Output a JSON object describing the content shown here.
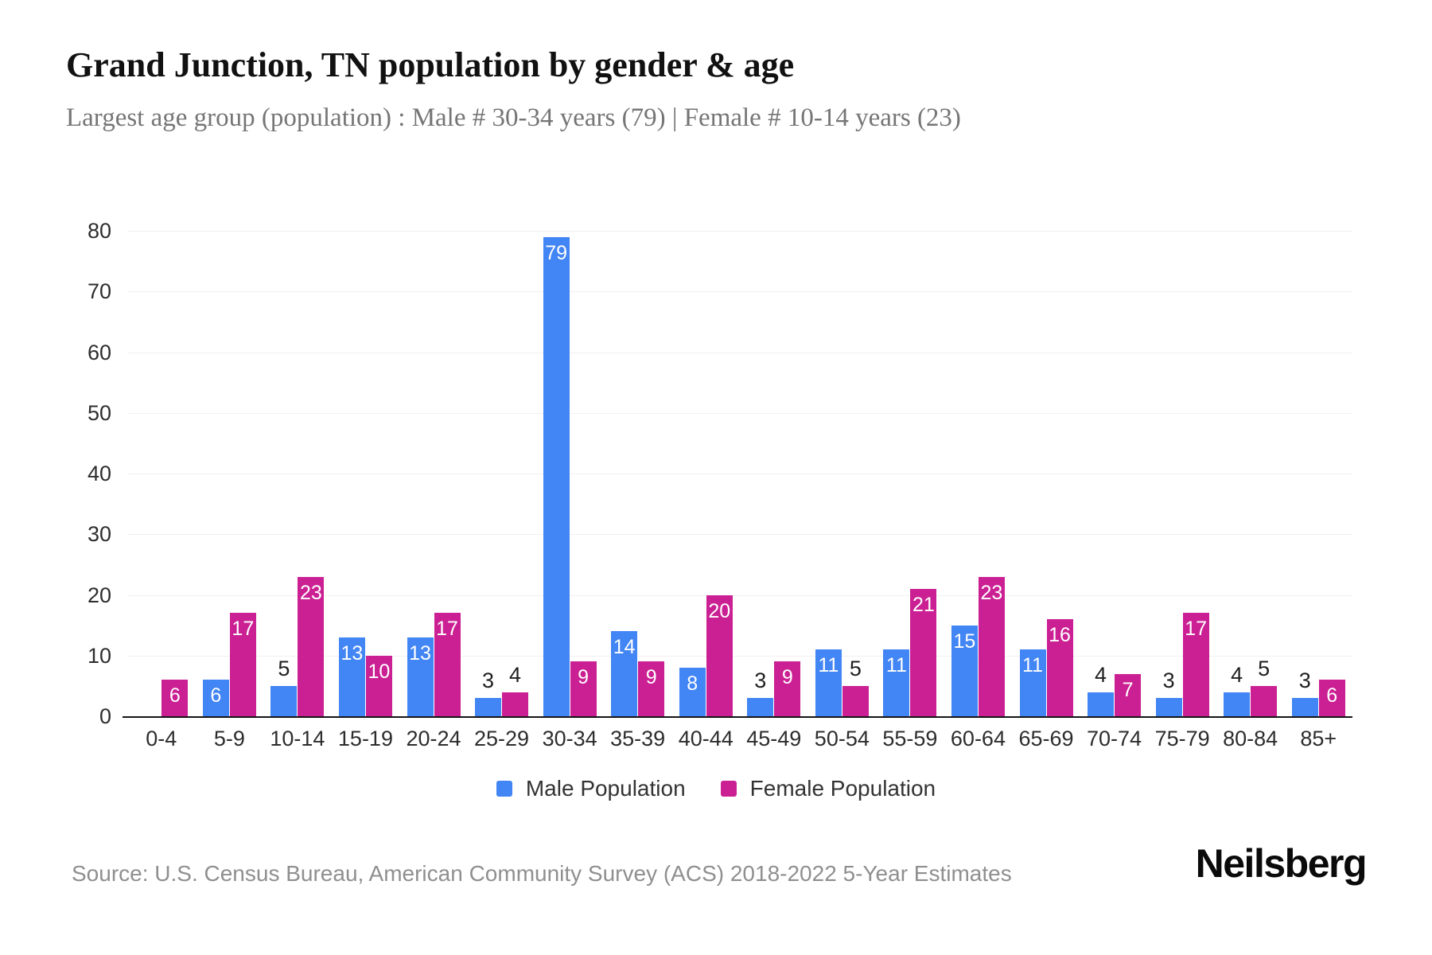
{
  "header": {
    "title": "Grand Junction, TN population by gender & age",
    "subtitle": "Largest age group (population) : Male # 30-34 years (79) | Female # 10-14 years (23)"
  },
  "chart_data": {
    "type": "bar",
    "title": "Grand Junction, TN population by gender & age",
    "xlabel": "",
    "ylabel": "",
    "categories": [
      "0-4",
      "5-9",
      "10-14",
      "15-19",
      "20-24",
      "25-29",
      "30-34",
      "35-39",
      "40-44",
      "45-49",
      "50-54",
      "55-59",
      "60-64",
      "65-69",
      "70-74",
      "75-79",
      "80-84",
      "85+"
    ],
    "series": [
      {
        "name": "Male Population",
        "color": "#4285f4",
        "values": [
          0,
          6,
          5,
          13,
          13,
          3,
          79,
          14,
          8,
          3,
          11,
          11,
          15,
          11,
          4,
          3,
          4,
          3
        ]
      },
      {
        "name": "Female Population",
        "color": "#cb2093",
        "values": [
          6,
          17,
          23,
          10,
          17,
          4,
          9,
          9,
          20,
          9,
          5,
          21,
          23,
          16,
          7,
          17,
          5,
          6
        ]
      }
    ],
    "ylim": [
      0,
      80
    ],
    "yticks": [
      0,
      10,
      20,
      30,
      40,
      50,
      60,
      70,
      80
    ],
    "grid": true,
    "legend_position": "bottom",
    "label_rule": "values of 6 or more shown in white inside bar top; values of 5 or less shown in dark text above bar; zero values have no bar and no label"
  },
  "legend": {
    "male_label": "Male Population",
    "female_label": "Female Population"
  },
  "footer": {
    "source": "Source: U.S. Census Bureau, American Community Survey (ACS) 2018-2022 5-Year Estimates",
    "brand": "Neilsberg"
  },
  "colors": {
    "male": "#4285f4",
    "female": "#cb2093",
    "gridline": "#f0f0f0",
    "axis_line": "#141414",
    "tick_text": "#2d2d2d",
    "subtitle_text": "#757575",
    "source_text": "#8f8f8f"
  }
}
